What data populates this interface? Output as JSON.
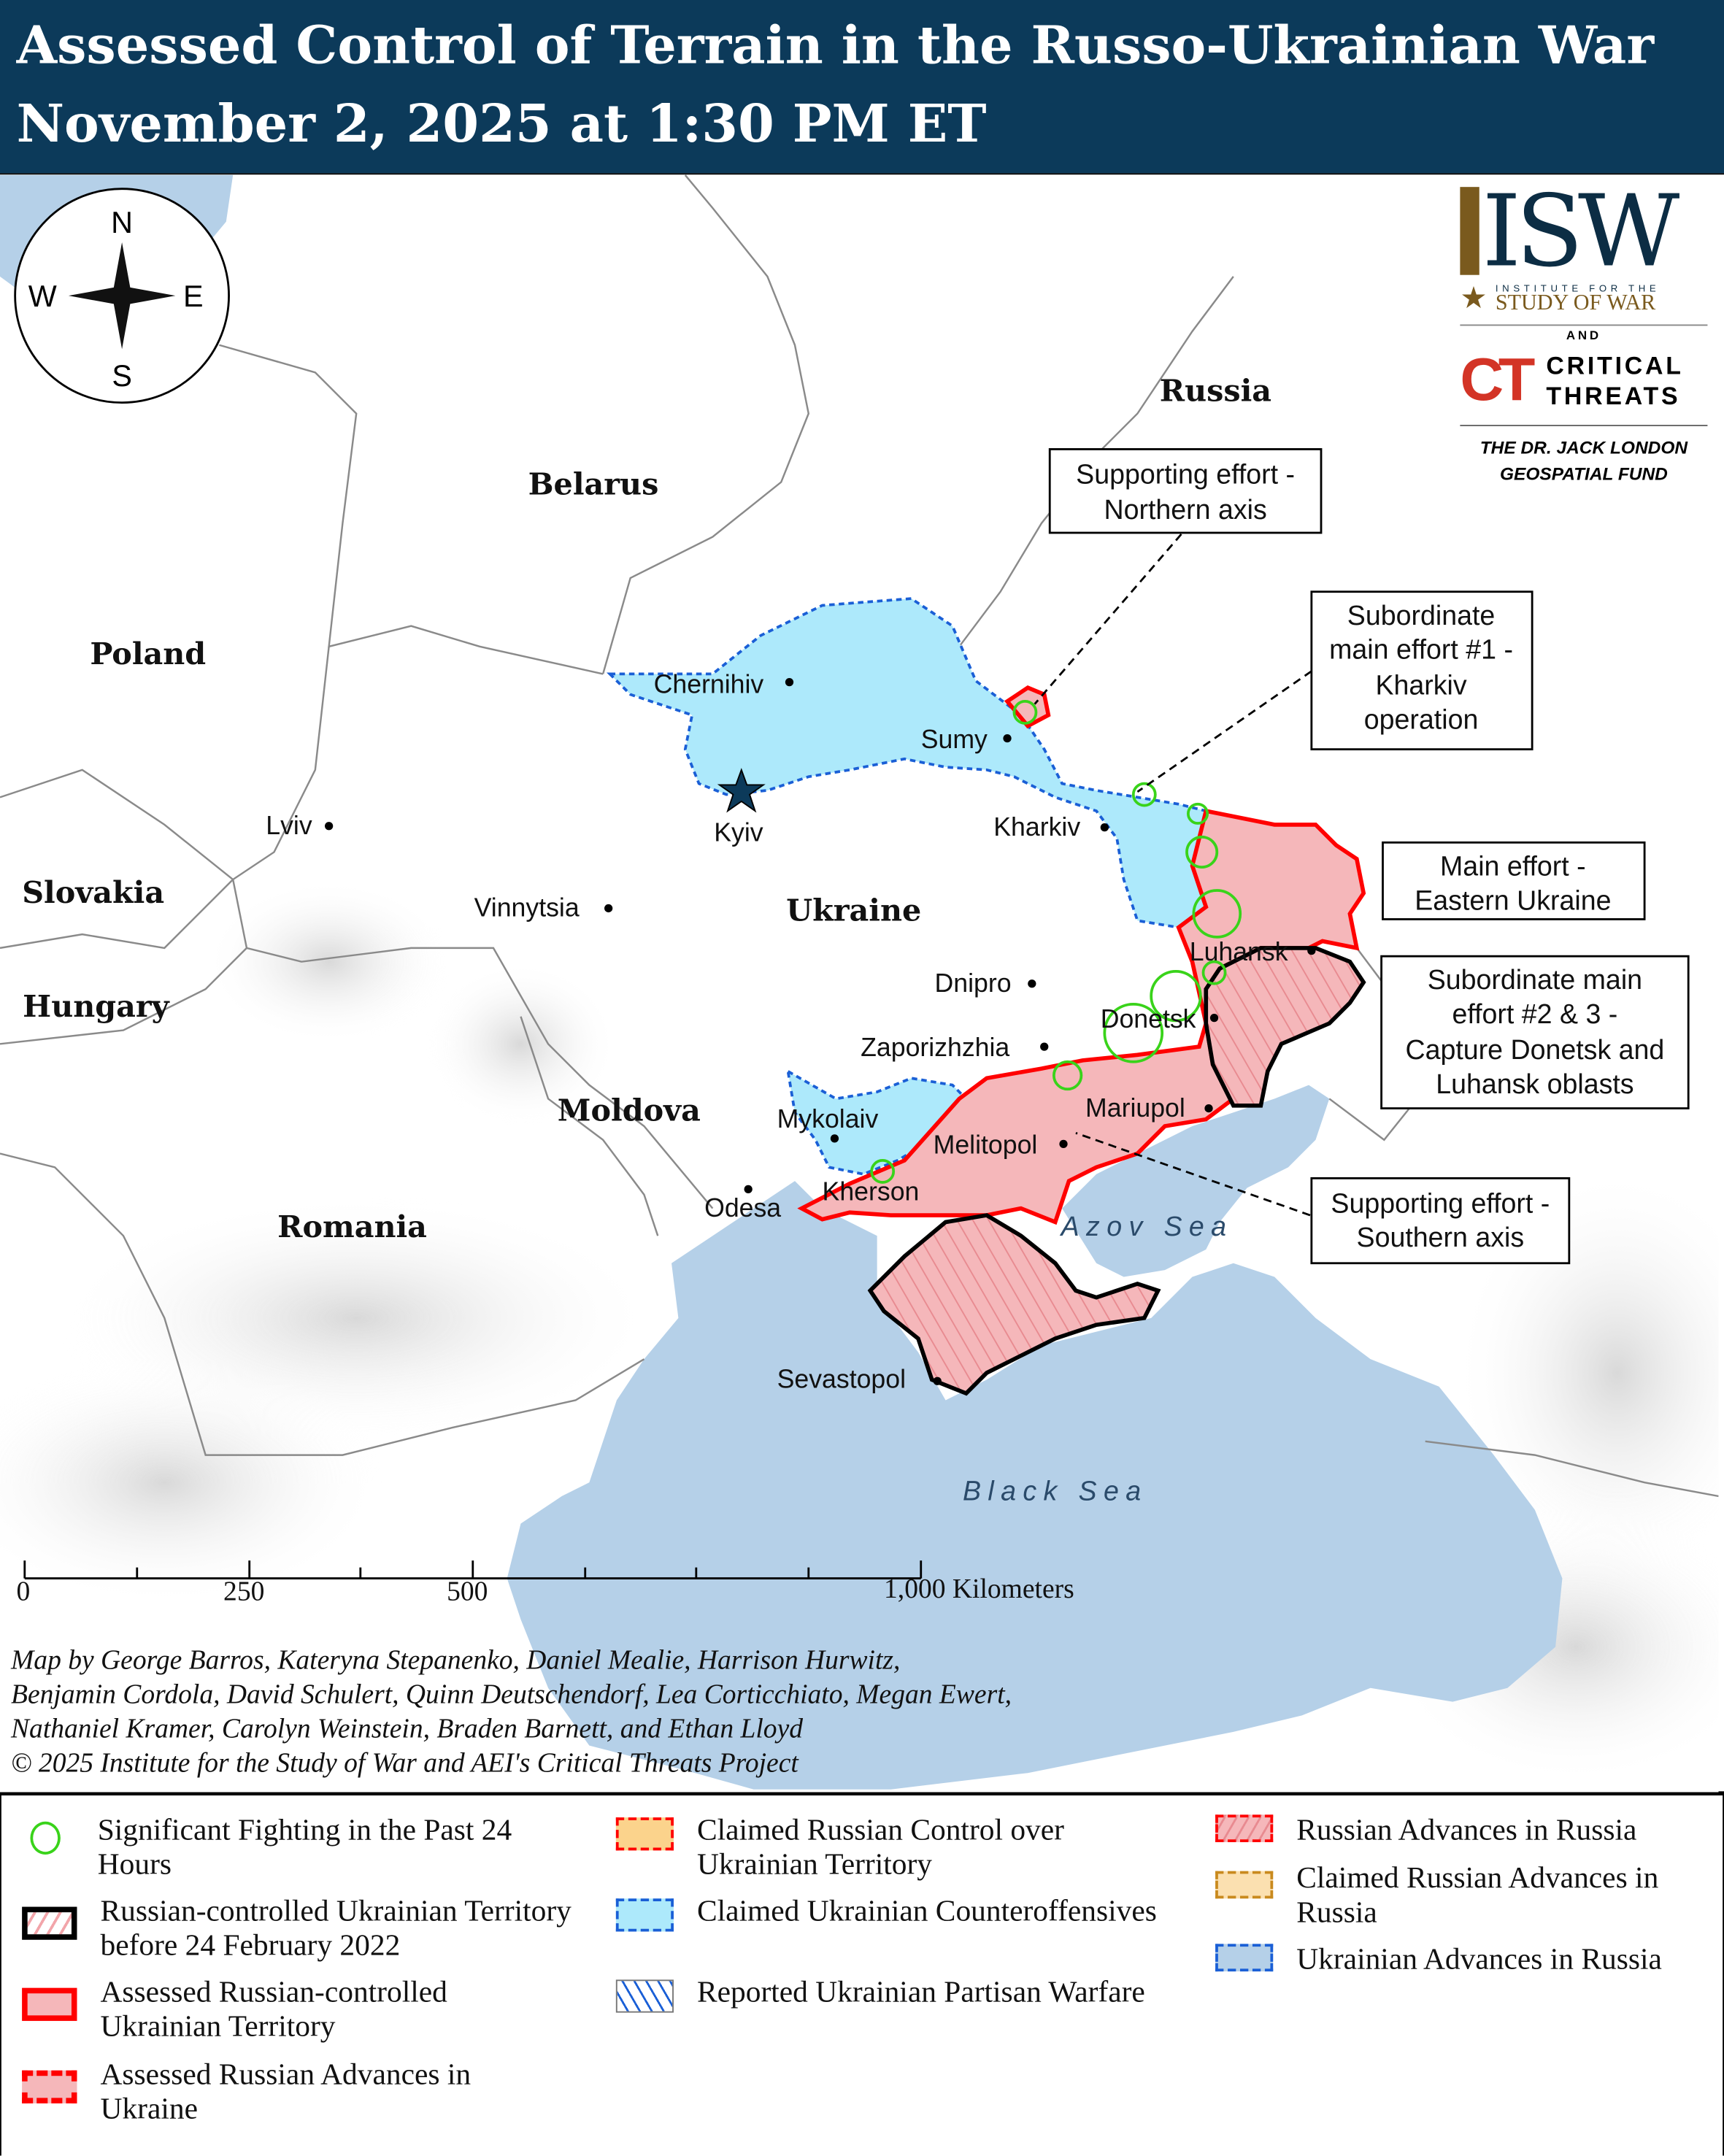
{
  "header": {
    "title_line1": "Assessed Control of Terrain in the Russo-Ukrainian War",
    "title_line2": "November 2, 2025 at 1:30 PM ET"
  },
  "logo": {
    "isw": "ISW",
    "isw_sub1": "INSTITUTE FOR THE",
    "isw_sub2": "STUDY OF WAR",
    "and": "AND",
    "ct1": "CRITICAL",
    "ct2": "THREATS",
    "ct_mark": "CT",
    "fund1": "THE DR. JACK LONDON",
    "fund2": "GEOSPATIAL FUND"
  },
  "compass": {
    "n": "N",
    "s": "S",
    "e": "E",
    "w": "W"
  },
  "countries": {
    "russia": "Russia",
    "belarus": "Belarus",
    "poland": "Poland",
    "slovakia": "Slovakia",
    "hungary": "Hungary",
    "moldova": "Moldova",
    "romania": "Romania",
    "ukraine": "Ukraine"
  },
  "cities": {
    "chernihiv": "Chernihiv",
    "sumy": "Sumy",
    "kyiv": "Kyiv",
    "kharkiv": "Kharkiv",
    "lviv": "Lviv",
    "vinnytsia": "Vinnytsia",
    "dnipro": "Dnipro",
    "zaporizhzhia": "Zaporizhzhia",
    "luhansk": "Luhansk",
    "donetsk": "Donetsk",
    "mariupol": "Mariupol",
    "melitopol": "Melitopol",
    "mykolaiv": "Mykolaiv",
    "kherson": "Kherson",
    "odesa": "Odesa",
    "sevastopol": "Sevastopol"
  },
  "seas": {
    "azov": "Azov Sea",
    "black": "Black Sea"
  },
  "callouts": {
    "northern": [
      "Supporting effort -",
      "Northern axis"
    ],
    "kharkiv": [
      "Subordinate",
      "main effort #1 -",
      "Kharkiv",
      "operation"
    ],
    "main": [
      "Main effort -",
      "Eastern Ukraine"
    ],
    "donbas": [
      "Subordinate main",
      "effort #2 & 3 -",
      "Capture Donetsk and",
      "Luhansk oblasts"
    ],
    "southern": [
      "Supporting effort -",
      "Southern axis"
    ]
  },
  "scale": {
    "t0": "0",
    "t250": "250",
    "t500": "500",
    "t1000": "1,000 Kilometers"
  },
  "credits": [
    "Map by George Barros, Kateryna Stepanenko, Daniel Mealie, Harrison Hurwitz,",
    "Benjamin Cordola, David Schulert, Quinn Deutschendorf, Lea Corticchiato, Megan Ewert,",
    "Nathaniel Kramer, Carolyn Weinstein, Braden Barnett, and Ethan Lloyd",
    "© 2025 Institute for the Study of War and AEI's Critical Threats Project"
  ],
  "legend": [
    {
      "label": "Significant Fighting in the Past 24 Hours",
      "icon": "green-circle"
    },
    {
      "label": "Russian-controlled Ukrainian Territory before 24 February 2022",
      "icon": "black-hatched-box"
    },
    {
      "label": "Assessed Russian-controlled Ukrainian Territory",
      "icon": "red-pink-box"
    },
    {
      "label": "Assessed Russian Advances in Ukraine",
      "icon": "red-dashed-pink-box"
    },
    {
      "label": "Claimed Russian Control over Ukrainian Territory",
      "icon": "red-dashed-orange-box"
    },
    {
      "label": "Claimed Ukrainian Counteroffensives",
      "icon": "blue-dashed-cyan-box"
    },
    {
      "label": "Reported Ukrainian Partisan Warfare",
      "icon": "blue-hatched-box"
    },
    {
      "label": "Russian Advances in Russia",
      "icon": "red-dashed-hatched-box"
    },
    {
      "label": "Claimed Russian Advances in Russia",
      "icon": "orange-dashed-box"
    },
    {
      "label": "Ukrainian Advances in Russia",
      "icon": "blue-dashed-blue-box"
    }
  ],
  "colors": {
    "header": "#0c3a5a",
    "sea": "#b5d0e8",
    "russian_control": "#f5b7ba",
    "russian_border": "#ff0000",
    "ukraine_claimed": "#ade9fb",
    "ukraine_border": "#1a5fd6",
    "fighting": "#39d31a"
  }
}
